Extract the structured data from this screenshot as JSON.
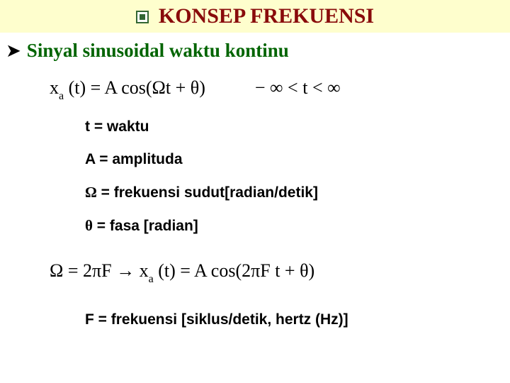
{
  "title": "KONSEP FREKUENSI",
  "subtitle": "Sinyal sinusoidal waktu kontinu",
  "formula1_left": "x",
  "formula1_sub": "a",
  "formula1_mid": " (t) = A cos(Ωt + θ)",
  "formula1_right": "− ∞ < t < ∞",
  "def_t": "t = waktu",
  "def_A": "A = amplituda",
  "def_omega_sym": "Ω",
  "def_omega_rest": " = frekuensi sudut[radian/detik]",
  "def_theta_sym": "θ",
  "def_theta_rest": " = fasa [radian]",
  "formula2_lhs": "Ω = 2πF   →   x",
  "formula2_sub": "a",
  "formula2_rhs": " (t) = A cos(2πF t + θ)",
  "def_F": "F = frekuensi [siklus/detik, hertz (Hz)]",
  "colors": {
    "title_bg": "#fefecd",
    "title_text": "#890b0b",
    "subtitle_text": "#006400",
    "bullet_border": "#336633"
  }
}
